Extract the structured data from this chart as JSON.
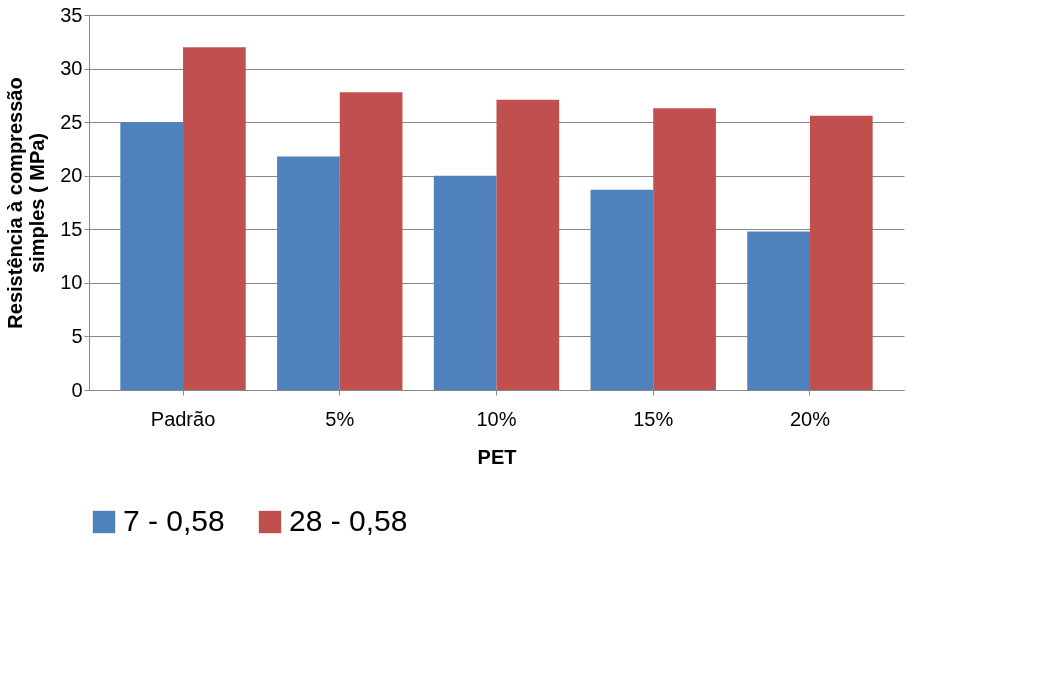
{
  "chart_data": {
    "type": "bar",
    "xlabel": "PET",
    "ylabel": "Resistência à compressão simples  ( MPa)",
    "categories": [
      "Padrão",
      "5%",
      "10%",
      "15%",
      "20%"
    ],
    "series": [
      {
        "name": "7 - 0,58",
        "color": "#4f81bd",
        "values": [
          25,
          21.8,
          20,
          18.7,
          14.8
        ]
      },
      {
        "name": "28 - 0,58",
        "color": "#c0504d",
        "values": [
          32,
          27.8,
          27.1,
          26.3,
          25.6
        ]
      }
    ],
    "ylim": [
      0,
      35
    ],
    "yticks": [
      0,
      5,
      10,
      15,
      20,
      25,
      30,
      35
    ],
    "grid": "y",
    "legend": "bottom"
  }
}
